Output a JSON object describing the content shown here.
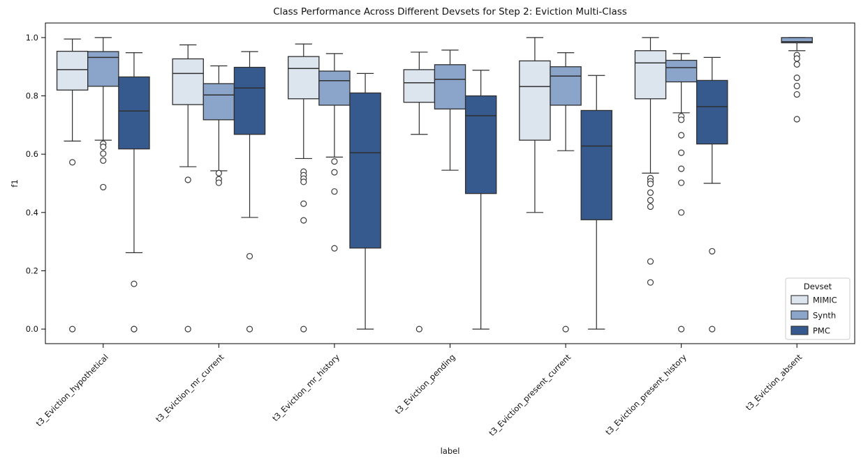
{
  "chart_data": {
    "type": "boxplot",
    "title": "Class Performance Across Different Devsets for Step 2: Eviction Multi-Class",
    "xlabel": "label",
    "ylabel": "f1",
    "ylim": [
      -0.05,
      1.05
    ],
    "yticks": [
      0.0,
      0.2,
      0.4,
      0.6,
      0.8,
      1.0
    ],
    "grid": false,
    "edge_color": "#2e2e2e",
    "categories": [
      "t3_Eviction_hypothetical",
      "t3_Eviction_mr_current",
      "t3_Eviction_mr_history",
      "t3_Eviction_pending",
      "t3_Eviction_present_current",
      "t3_Eviction_present_history",
      "t3_Eviction_absent"
    ],
    "legend": {
      "title": "Devset",
      "position": "lower-right",
      "entries": [
        {
          "label": "MIMIC",
          "color": "#dce4ee"
        },
        {
          "label": "Synth",
          "color": "#8ba5ca"
        },
        {
          "label": "PMC",
          "color": "#365a8e"
        }
      ]
    },
    "series": [
      {
        "name": "MIMIC",
        "color": "#dce4ee",
        "boxes": [
          {
            "whislo": 0.645,
            "q1": 0.82,
            "med": 0.89,
            "q3": 0.953,
            "whishi": 0.995,
            "outliers": [
              0.572,
              0.0
            ]
          },
          {
            "whislo": 0.557,
            "q1": 0.77,
            "med": 0.877,
            "q3": 0.927,
            "whishi": 0.975,
            "outliers": [
              0.512,
              0.0
            ]
          },
          {
            "whislo": 0.585,
            "q1": 0.79,
            "med": 0.894,
            "q3": 0.935,
            "whishi": 0.978,
            "outliers": [
              0.54,
              0.528,
              0.516,
              0.505,
              0.43,
              0.373,
              0.0
            ]
          },
          {
            "whislo": 0.668,
            "q1": 0.778,
            "med": 0.845,
            "q3": 0.89,
            "whishi": 0.95,
            "outliers": [
              0.0
            ]
          },
          {
            "whislo": 0.4,
            "q1": 0.648,
            "med": 0.832,
            "q3": 0.92,
            "whishi": 1.0,
            "outliers": []
          },
          {
            "whislo": 0.535,
            "q1": 0.79,
            "med": 0.913,
            "q3": 0.955,
            "whishi": 1.0,
            "outliers": [
              0.518,
              0.507,
              0.498,
              0.468,
              0.442,
              0.42,
              0.232,
              0.16
            ]
          },
          null
        ]
      },
      {
        "name": "Synth",
        "color": "#8ba5ca",
        "boxes": [
          {
            "whislo": 0.648,
            "q1": 0.833,
            "med": 0.932,
            "q3": 0.952,
            "whishi": 1.0,
            "outliers": [
              0.636,
              0.625,
              0.602,
              0.578,
              0.487
            ]
          },
          {
            "whislo": 0.543,
            "q1": 0.718,
            "med": 0.803,
            "q3": 0.842,
            "whishi": 0.903,
            "outliers": [
              0.535,
              0.514,
              0.502
            ]
          },
          {
            "whislo": 0.59,
            "q1": 0.768,
            "med": 0.852,
            "q3": 0.885,
            "whishi": 0.945,
            "outliers": [
              0.575,
              0.538,
              0.472,
              0.277
            ]
          },
          {
            "whislo": 0.545,
            "q1": 0.755,
            "med": 0.857,
            "q3": 0.907,
            "whishi": 0.957,
            "outliers": []
          },
          {
            "whislo": 0.612,
            "q1": 0.768,
            "med": 0.868,
            "q3": 0.9,
            "whishi": 0.948,
            "outliers": [
              0.0
            ]
          },
          {
            "whislo": 0.742,
            "q1": 0.848,
            "med": 0.897,
            "q3": 0.922,
            "whishi": 0.945,
            "outliers": [
              0.73,
              0.718,
              0.665,
              0.605,
              0.55,
              0.502,
              0.4,
              0.0
            ]
          },
          {
            "whislo": 0.955,
            "q1": 0.982,
            "med": 0.986,
            "q3": 1.0,
            "whishi": 1.0,
            "outliers": [
              0.94,
              0.928,
              0.908,
              0.862,
              0.834,
              0.805,
              0.72
            ]
          }
        ]
      },
      {
        "name": "PMC",
        "color": "#365a8e",
        "boxes": [
          {
            "whislo": 0.262,
            "q1": 0.618,
            "med": 0.748,
            "q3": 0.865,
            "whishi": 0.948,
            "outliers": [
              0.155,
              0.0,
              0.0
            ]
          },
          {
            "whislo": 0.383,
            "q1": 0.668,
            "med": 0.827,
            "q3": 0.898,
            "whishi": 0.952,
            "outliers": [
              0.25,
              0.0
            ]
          },
          {
            "whislo": 0.0,
            "q1": 0.278,
            "med": 0.605,
            "q3": 0.81,
            "whishi": 0.877,
            "outliers": []
          },
          {
            "whislo": 0.0,
            "q1": 0.465,
            "med": 0.732,
            "q3": 0.8,
            "whishi": 0.888,
            "outliers": []
          },
          {
            "whislo": 0.0,
            "q1": 0.375,
            "med": 0.628,
            "q3": 0.75,
            "whishi": 0.87,
            "outliers": []
          },
          {
            "whislo": 0.5,
            "q1": 0.635,
            "med": 0.763,
            "q3": 0.853,
            "whishi": 0.932,
            "outliers": [
              0.267,
              0.0
            ]
          },
          null
        ]
      }
    ]
  }
}
